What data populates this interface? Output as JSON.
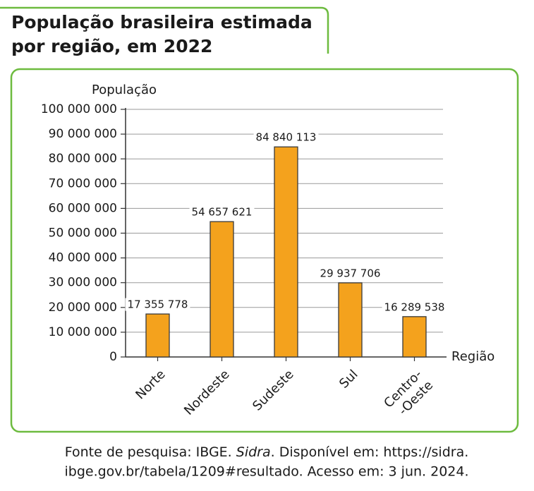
{
  "chart_data": {
    "type": "bar",
    "title": "População brasileira estimada\npor região, em 2022",
    "y_label": "População",
    "x_label": "Região",
    "categories": [
      "Norte",
      "Nordeste",
      "Sudeste",
      "Sul",
      "Centro-\n-Oeste"
    ],
    "values": [
      17355778,
      54657621,
      84840113,
      29937706,
      16289538
    ],
    "value_labels": [
      "17 355 778",
      "54 657 621",
      "84 840 113",
      "29 937 706",
      "16 289 538"
    ],
    "color": "#f4a21d",
    "ylim": [
      0,
      100000000
    ],
    "yticks": [
      0,
      {
        "value": 10000000,
        "label": "10 000 000"
      },
      {
        "value": 20000000,
        "label": "20 000 000"
      },
      {
        "value": 30000000,
        "label": "30 000 000"
      },
      {
        "value": 40000000,
        "label": "40 000 000"
      },
      {
        "value": 50000000,
        "label": "50 000 000"
      },
      {
        "value": 60000000,
        "label": "60 000 000"
      },
      {
        "value": 70000000,
        "label": "70 000 000"
      },
      {
        "value": 80000000,
        "label": "80 000 000"
      },
      {
        "value": 90000000,
        "label": "90 000 000"
      },
      {
        "value": 100000000,
        "label": "100 000 000"
      }
    ],
    "grid": true,
    "source": {
      "line1": [
        "Fonte de pesquisa: IBGE. ",
        "Sidra",
        ". Disponível em: https://sidra."
      ],
      "line2": "ibge.gov.br/tabela/1209#resultado. Acesso em: 3 jun. 2024."
    }
  }
}
